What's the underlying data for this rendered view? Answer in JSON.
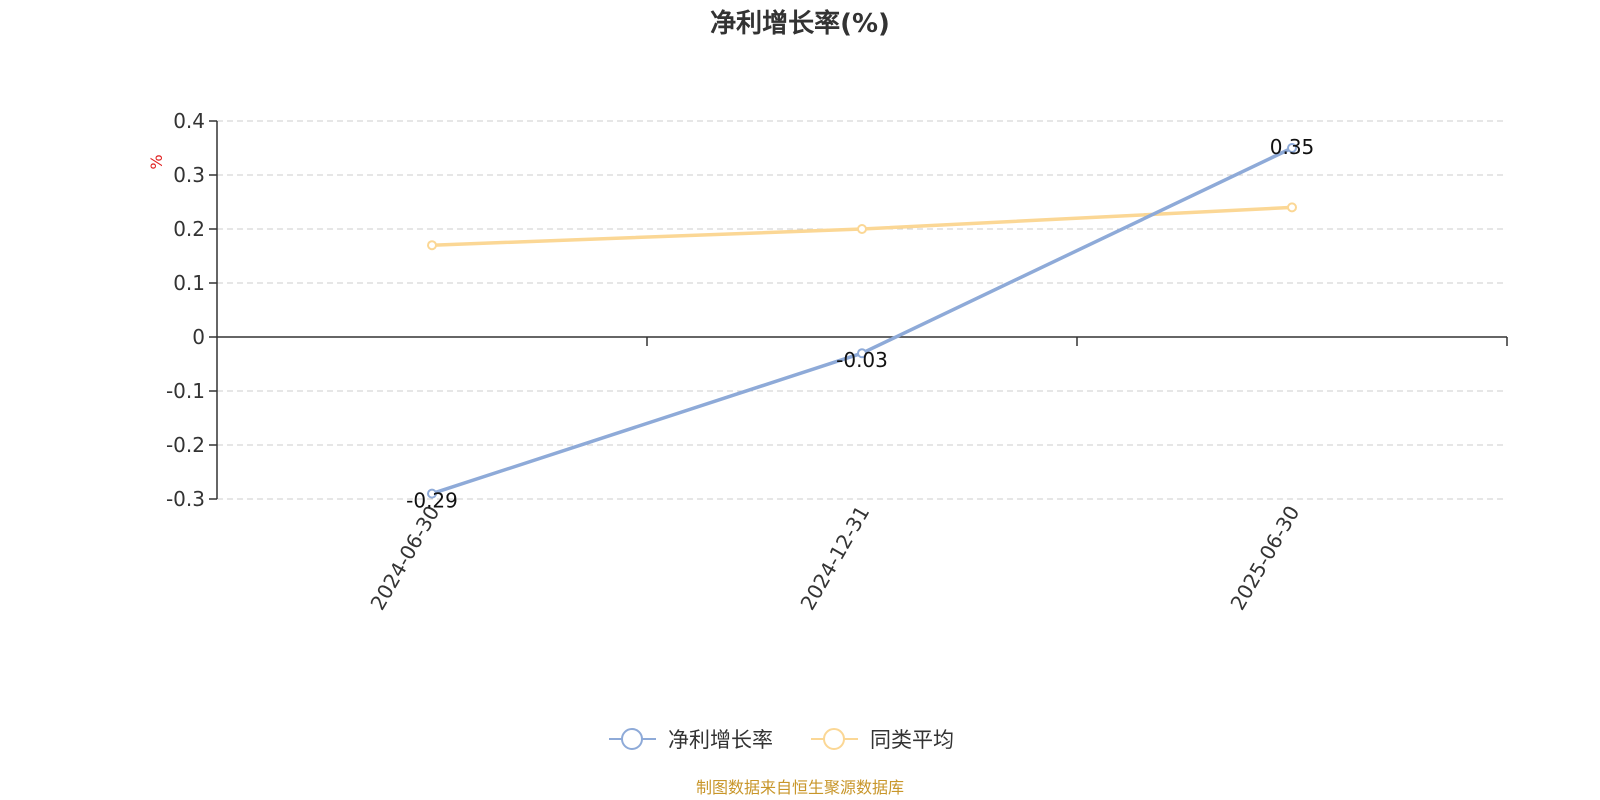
{
  "chart_data": {
    "type": "line",
    "title": "净利增长率(%)",
    "ylabel": "%",
    "categories": [
      "2024-06-30",
      "2024-12-31",
      "2025-06-30"
    ],
    "ylim": [
      -0.3,
      0.4
    ],
    "yticks": [
      0.4,
      0.3,
      0.2,
      0.1,
      0,
      -0.1,
      -0.2,
      -0.3
    ],
    "grid": true,
    "legend_position": "bottom",
    "series": [
      {
        "name": "净利增长率",
        "values": [
          -0.29,
          -0.03,
          0.35
        ],
        "color": "#8eaad8",
        "labels": [
          "-0.29",
          "-0.03",
          "0.35"
        ]
      },
      {
        "name": "同类平均",
        "values": [
          0.17,
          0.2,
          0.24
        ],
        "color": "#fbd795"
      }
    ]
  },
  "source": {
    "text": "制图数据来自恒生聚源数据库",
    "color": "#c8962a"
  },
  "unit_color": "#e02020"
}
